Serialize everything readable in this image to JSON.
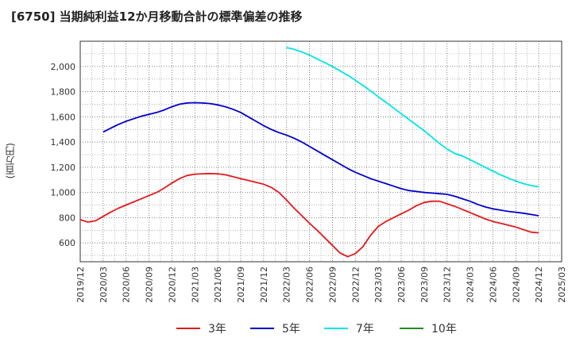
{
  "title": "[6750]  当期純利益12か月移動合計の標準偏差の推移",
  "y_unit_label": "(百万円)",
  "chart_data": {
    "type": "line",
    "title": "[6750]  当期純利益12か月移動合計の標準偏差の推移",
    "ylabel": "(百万円)",
    "ylim": [
      450,
      2200
    ],
    "yticks": [
      600,
      800,
      1000,
      1200,
      1400,
      1600,
      1800,
      2000
    ],
    "ytick_labels": [
      "600",
      "800",
      "1,000",
      "1,200",
      "1,400",
      "1,600",
      "1,800",
      "2,000"
    ],
    "xticks": [
      "2019/12",
      "2020/03",
      "2020/06",
      "2020/09",
      "2020/12",
      "2021/03",
      "2021/06",
      "2021/09",
      "2021/12",
      "2022/03",
      "2022/06",
      "2022/09",
      "2022/12",
      "2023/03",
      "2023/06",
      "2023/09",
      "2023/12",
      "2024/03",
      "2024/06",
      "2024/09",
      "2024/12",
      "2025/03"
    ],
    "grid": true,
    "legend_position": "bottom",
    "series": [
      {
        "name": "3年",
        "color": "#e41a1c",
        "x": [
          "2019/12",
          "2020/01",
          "2020/02",
          "2020/03",
          "2020/04",
          "2020/05",
          "2020/06",
          "2020/07",
          "2020/08",
          "2020/09",
          "2020/10",
          "2020/11",
          "2020/12",
          "2021/01",
          "2021/02",
          "2021/03",
          "2021/04",
          "2021/05",
          "2021/06",
          "2021/07",
          "2021/08",
          "2021/09",
          "2021/10",
          "2021/11",
          "2021/12",
          "2022/01",
          "2022/02",
          "2022/03",
          "2022/04",
          "2022/05",
          "2022/06",
          "2022/07",
          "2022/08",
          "2022/09",
          "2022/10",
          "2022/11",
          "2022/12",
          "2023/01",
          "2023/02",
          "2023/03",
          "2023/04",
          "2023/05",
          "2023/06",
          "2023/07",
          "2023/08",
          "2023/09",
          "2023/10",
          "2023/11",
          "2023/12",
          "2024/01",
          "2024/02",
          "2024/03",
          "2024/04",
          "2024/05",
          "2024/06",
          "2024/07",
          "2024/08",
          "2024/09",
          "2024/10",
          "2024/11",
          "2024/12"
        ],
        "values": [
          785,
          765,
          775,
          810,
          845,
          875,
          900,
          925,
          950,
          975,
          1000,
          1035,
          1075,
          1110,
          1135,
          1145,
          1148,
          1150,
          1148,
          1140,
          1125,
          1110,
          1095,
          1080,
          1065,
          1040,
          1000,
          940,
          875,
          815,
          755,
          700,
          640,
          580,
          520,
          490,
          515,
          570,
          660,
          730,
          770,
          800,
          830,
          860,
          895,
          920,
          930,
          930,
          910,
          890,
          865,
          840,
          815,
          790,
          770,
          755,
          740,
          725,
          705,
          685,
          680
        ]
      },
      {
        "name": "5年",
        "color": "#0000cc",
        "x": [
          "2020/03",
          "2020/04",
          "2020/05",
          "2020/06",
          "2020/07",
          "2020/08",
          "2020/09",
          "2020/10",
          "2020/11",
          "2020/12",
          "2021/01",
          "2021/02",
          "2021/03",
          "2021/04",
          "2021/05",
          "2021/06",
          "2021/07",
          "2021/08",
          "2021/09",
          "2021/10",
          "2021/11",
          "2021/12",
          "2022/01",
          "2022/02",
          "2022/03",
          "2022/04",
          "2022/05",
          "2022/06",
          "2022/07",
          "2022/08",
          "2022/09",
          "2022/10",
          "2022/11",
          "2022/12",
          "2023/01",
          "2023/02",
          "2023/03",
          "2023/04",
          "2023/05",
          "2023/06",
          "2023/07",
          "2023/08",
          "2023/09",
          "2023/10",
          "2023/11",
          "2023/12",
          "2024/01",
          "2024/02",
          "2024/03",
          "2024/04",
          "2024/05",
          "2024/06",
          "2024/07",
          "2024/08",
          "2024/09",
          "2024/10",
          "2024/11",
          "2024/12"
        ],
        "values": [
          1480,
          1510,
          1540,
          1565,
          1585,
          1605,
          1620,
          1635,
          1655,
          1680,
          1700,
          1710,
          1712,
          1710,
          1705,
          1695,
          1680,
          1660,
          1635,
          1600,
          1565,
          1530,
          1500,
          1475,
          1455,
          1430,
          1400,
          1365,
          1330,
          1295,
          1260,
          1225,
          1190,
          1160,
          1135,
          1110,
          1090,
          1070,
          1050,
          1030,
          1015,
          1008,
          1000,
          995,
          990,
          985,
          970,
          950,
          930,
          905,
          885,
          870,
          860,
          850,
          843,
          835,
          825,
          815
        ]
      },
      {
        "name": "7年",
        "color": "#00e5e5",
        "x": [
          "2022/03",
          "2022/04",
          "2022/05",
          "2022/06",
          "2022/07",
          "2022/08",
          "2022/09",
          "2022/10",
          "2022/11",
          "2022/12",
          "2023/01",
          "2023/02",
          "2023/03",
          "2023/04",
          "2023/05",
          "2023/06",
          "2023/07",
          "2023/08",
          "2023/09",
          "2023/10",
          "2023/11",
          "2023/12",
          "2024/01",
          "2024/02",
          "2024/03",
          "2024/04",
          "2024/05",
          "2024/06",
          "2024/07",
          "2024/08",
          "2024/09",
          "2024/10",
          "2024/11",
          "2024/12"
        ],
        "values": [
          2150,
          2135,
          2115,
          2090,
          2060,
          2030,
          2000,
          1965,
          1930,
          1890,
          1850,
          1805,
          1760,
          1715,
          1670,
          1625,
          1580,
          1535,
          1490,
          1440,
          1390,
          1345,
          1310,
          1290,
          1260,
          1230,
          1200,
          1170,
          1140,
          1115,
          1090,
          1070,
          1055,
          1045
        ]
      },
      {
        "name": "10年",
        "color": "#228b22",
        "x": [],
        "values": []
      }
    ]
  }
}
